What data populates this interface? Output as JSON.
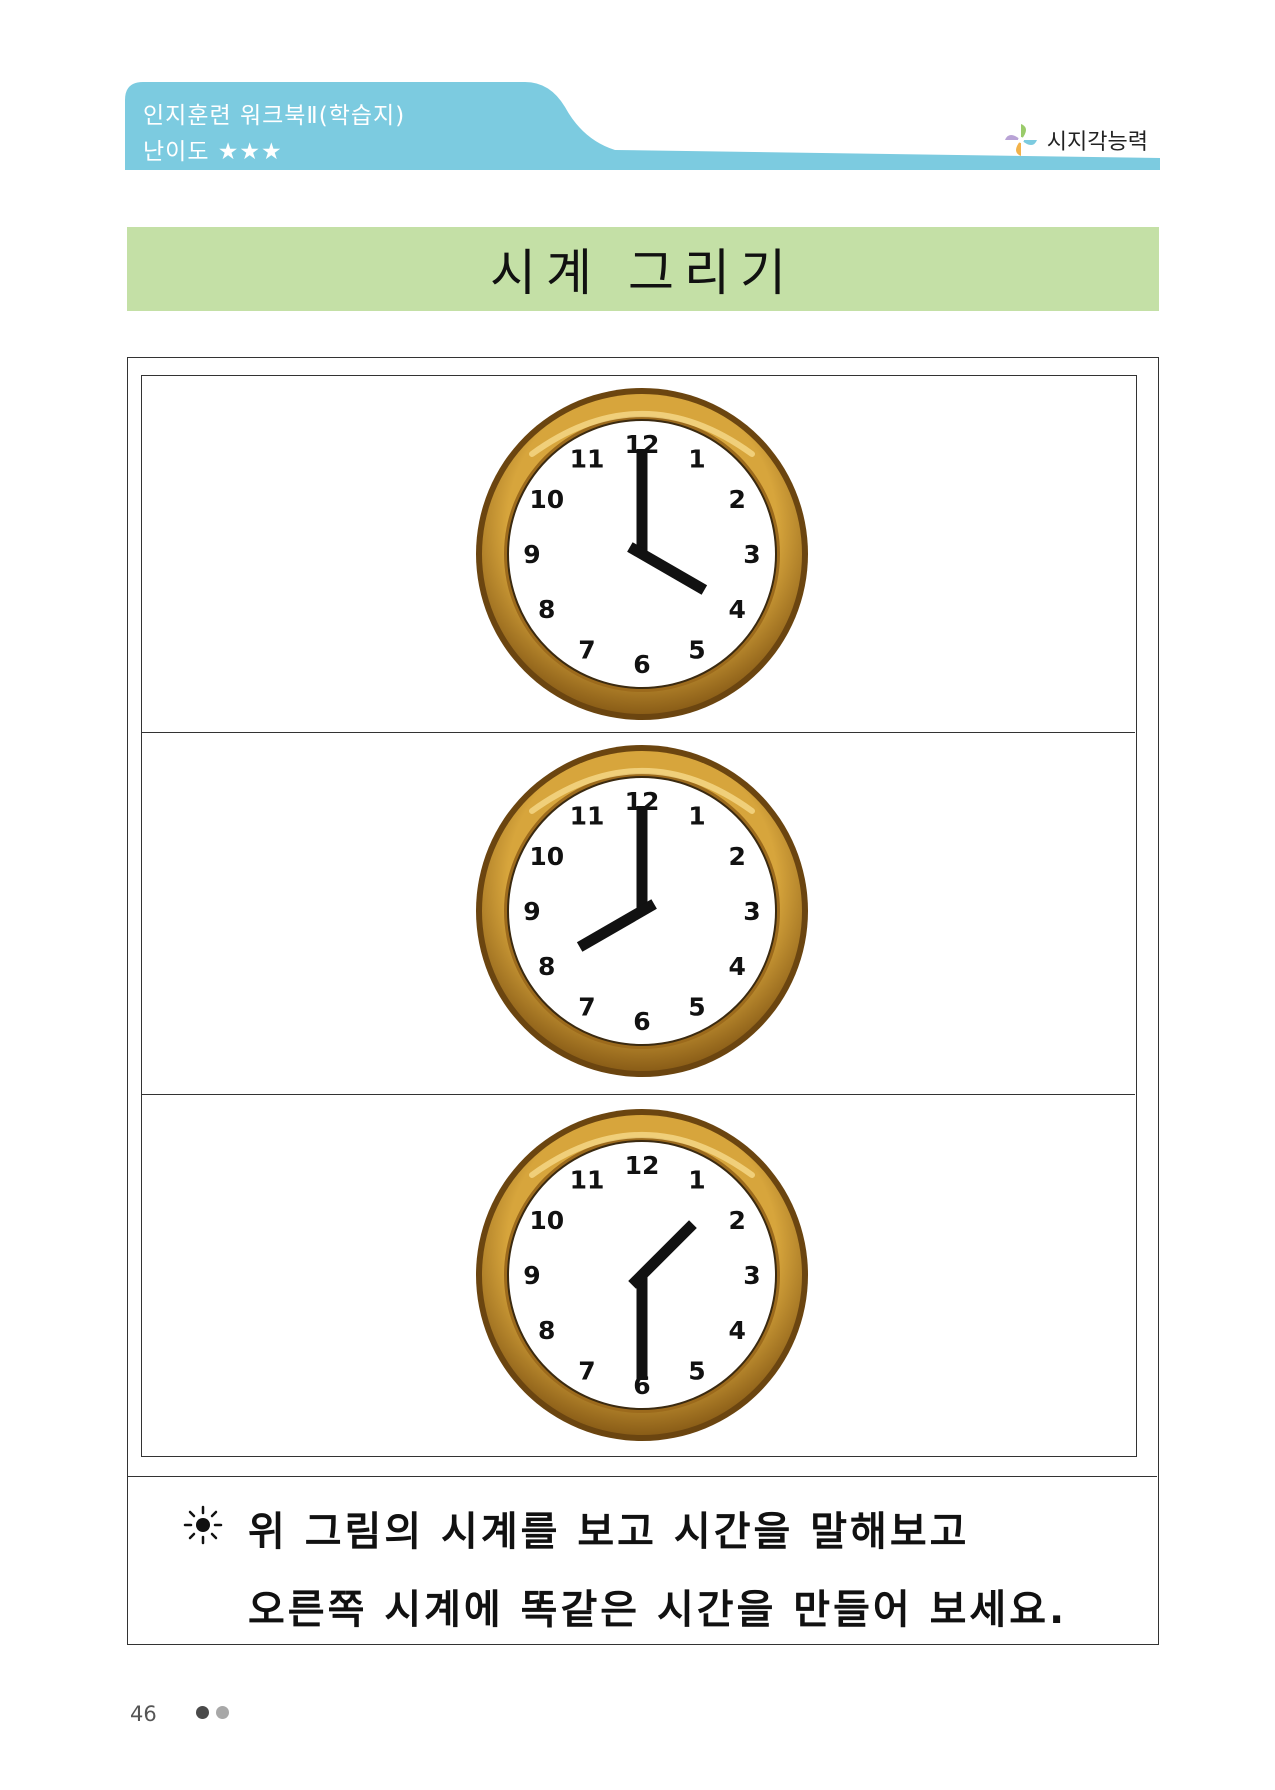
{
  "header": {
    "series_title": "인지훈련 워크북Ⅱ(학습지)",
    "difficulty": "난이도 ★★★",
    "category": "시지각능력",
    "accent_color": "#7ccbe0"
  },
  "title": "시계 그리기",
  "clocks": [
    {
      "hour": 4,
      "minute": 0,
      "numbers": [
        "12",
        "1",
        "2",
        "3",
        "4",
        "5",
        "6",
        "7",
        "8",
        "9",
        "10",
        "11"
      ]
    },
    {
      "hour": 8,
      "minute": 0,
      "numbers": [
        "12",
        "1",
        "2",
        "3",
        "4",
        "5",
        "6",
        "7",
        "8",
        "9",
        "10",
        "11"
      ]
    },
    {
      "hour": 1,
      "minute": 30,
      "numbers": [
        "12",
        "1",
        "2",
        "3",
        "4",
        "5",
        "6",
        "7",
        "8",
        "9",
        "10",
        "11"
      ]
    }
  ],
  "instruction": {
    "line1": "위 그림의 시계를 보고 시간을 말해보고",
    "line2": "오른쪽 시계에 똑같은 시간을 만들어 보세요.",
    "icon": "sun-icon"
  },
  "footer": {
    "page_number": "46"
  }
}
